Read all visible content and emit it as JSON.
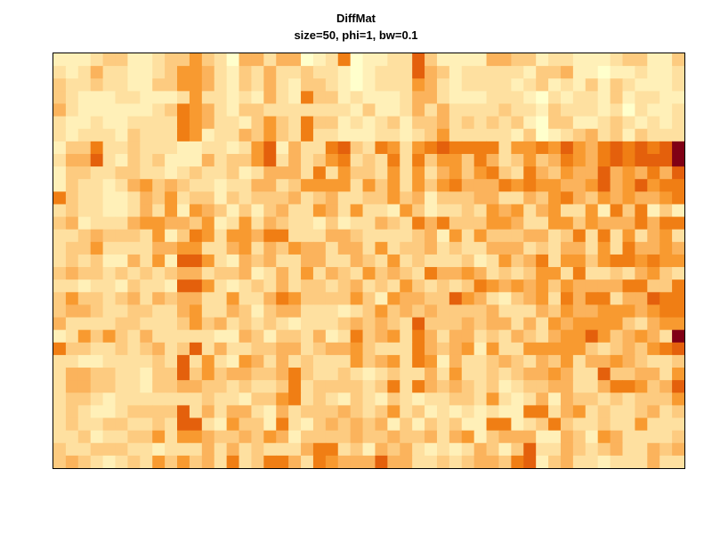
{
  "chart_data": {
    "type": "heatmap",
    "title": "DiffMat",
    "subtitle": "size=50, phi=1, bw=0.1",
    "xlabel": "",
    "ylabel": "",
    "nrows": 33,
    "ncols": 51,
    "colormap": [
      "#FFFFCC",
      "#FFF0B8",
      "#FEE0A0",
      "#FDCB80",
      "#FBB35C",
      "#F89A30",
      "#F07E14",
      "#E4600C",
      "#C83A06",
      "#800015"
    ],
    "value_range": [
      0,
      9
    ],
    "grid": false,
    "legend": "none",
    "rows": [
      "111233112335320442440126011227311114433122111233113",
      "212422112355421324223221012227431222221334110112112",
      "322322113355421324213321012225421222212312131321112",
      "321112211125221214216331211124421112221021221312211",
      "421111112365421332222222131124242222322132221202112",
      "211211222265422135326331212313342323231033112321212",
      "212221322265122435326221112212352222213012342313222",
      "133622322211221257142267326525676666255657546767679",
      "244721323111423357242356232626355364235346546767779",
      "133223322123223124442625332525245356326435447454647",
      "132212453432212244235555253525356444656554457457566",
      "632211243523313233342342233534133344224356435454456",
      "232211242515431313422542522153122325452452251636131",
      "341222455443512524322131224326463335542255354446466",
      "223433325136525546622244322223415253334423626252452",
      "233522224455224524354424425233423224442324425264454",
      "232311425177521434224422432523222312534625535665655",
      "343323232344233412425243253432644542323552622324532",
      "221221322177521232423323423253232365454535444466336",
      "353323424344225224653333531544337542134526466244766",
      "344322332245224313442221235343433334222435445554566",
      "422223322235342323212223434327333434424254555532455",
      "125353242222211431332412634526424423243245575345429",
      "633223234237242233442344532226434515225555532343567",
      "221122223272521542423222534526514223432435244543223",
      "244332213373534433463223212322425223234454227334425",
      "244332213344332322362333323626434323123344224665347",
      "233212222222322133562321321321223325212414332323335",
      "232112333372424421423334323523121212116624523223423",
      "232233223277215331621343434131323116612363223225222",
      "223122335255433435413333433433424513444114315422223",
      "322333221222424232224662314342121243137224323422434",
      "343212325353426236642654447442232344367134221222422"
    ]
  }
}
